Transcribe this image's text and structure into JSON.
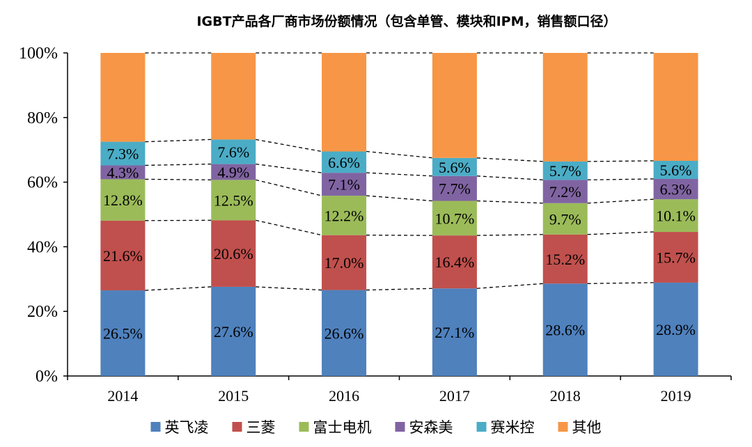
{
  "chart_data": {
    "type": "bar",
    "stacked": true,
    "title": "IGBT产品各厂商市场份额情况（包含单管、模块和IPM，销售额口径）",
    "categories": [
      "2014",
      "2015",
      "2016",
      "2017",
      "2018",
      "2019"
    ],
    "ylim": [
      0,
      100
    ],
    "yticks": [
      0,
      20,
      40,
      60,
      80,
      100
    ],
    "ytick_labels": [
      "0%",
      "20%",
      "40%",
      "60%",
      "80%",
      "100%"
    ],
    "xlabel": "",
    "ylabel": "",
    "legend_position": "bottom",
    "connector_lines": "dashed",
    "series": [
      {
        "name": "英飞凌",
        "color": "#4f81bd",
        "values": [
          26.5,
          27.6,
          26.6,
          27.1,
          28.6,
          28.9
        ],
        "labels": [
          "26.5%",
          "27.6%",
          "26.6%",
          "27.1%",
          "28.6%",
          "28.9%"
        ]
      },
      {
        "name": "三菱",
        "color": "#c0504d",
        "values": [
          21.6,
          20.6,
          17.0,
          16.4,
          15.2,
          15.7
        ],
        "labels": [
          "21.6%",
          "20.6%",
          "17.0%",
          "16.4%",
          "15.2%",
          "15.7%"
        ]
      },
      {
        "name": "富士电机",
        "color": "#9bbb59",
        "values": [
          12.8,
          12.5,
          12.2,
          10.7,
          9.7,
          10.1
        ],
        "labels": [
          "12.8%",
          "12.5%",
          "12.2%",
          "10.7%",
          "9.7%",
          "10.1%"
        ]
      },
      {
        "name": "安森美",
        "color": "#8064a2",
        "values": [
          4.3,
          4.9,
          7.1,
          7.7,
          7.2,
          6.3
        ],
        "labels": [
          "4.3%",
          "4.9%",
          "7.1%",
          "7.7%",
          "7.2%",
          "6.3%"
        ]
      },
      {
        "name": "赛米控",
        "color": "#4bacc6",
        "values": [
          7.3,
          7.6,
          6.6,
          5.6,
          5.7,
          5.6
        ],
        "labels": [
          "7.3%",
          "7.6%",
          "6.6%",
          "5.6%",
          "5.7%",
          "5.6%"
        ]
      },
      {
        "name": "其他",
        "color": "#f79646",
        "values": [
          27.5,
          26.8,
          30.5,
          32.5,
          33.6,
          33.4
        ],
        "labels": null
      }
    ]
  }
}
